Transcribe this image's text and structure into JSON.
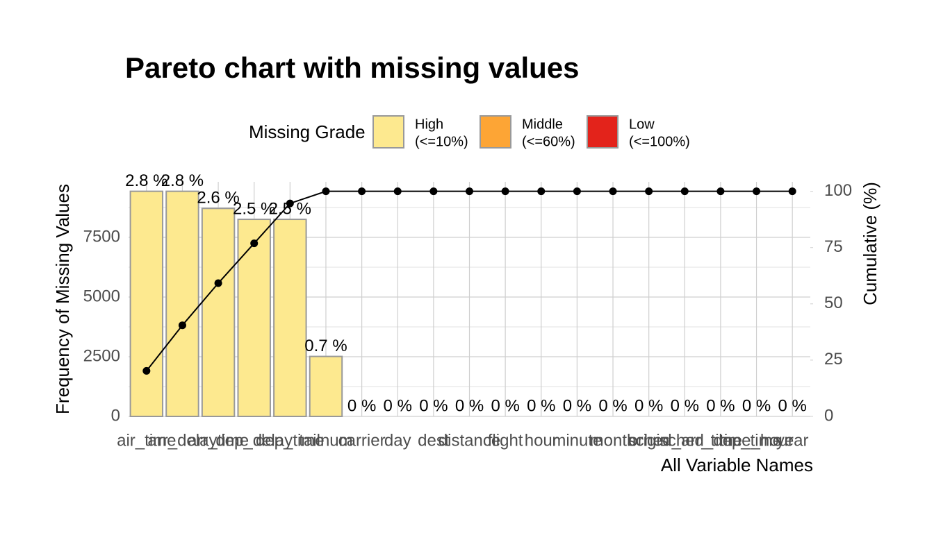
{
  "chart_data": {
    "type": "pareto",
    "title": "Pareto chart with missing values",
    "y_label": "Frequency of Missing Values",
    "y2_label": "Cumulative (%)",
    "x_label": "All Variable Names",
    "legend_title": "Missing Grade",
    "legend": [
      {
        "lines": [
          "High",
          "(<=10%)"
        ],
        "color": "#FDE98F"
      },
      {
        "lines": [
          "Middle",
          "(<=60%)"
        ],
        "color": "#FDA535"
      },
      {
        "lines": [
          "Low",
          "(<=100%)"
        ],
        "color": "#E3231B"
      }
    ],
    "categories": [
      "air_time",
      "arr_delay",
      "arr_time",
      "dep_delay",
      "dep_time",
      "tailnum",
      "carrier",
      "day",
      "dest",
      "distance",
      "flight",
      "hour",
      "minute",
      "month",
      "origin",
      "sched_arr_time",
      "sched_dep_time",
      "time_hour",
      "year"
    ],
    "values": [
      9430,
      9430,
      8713,
      8255,
      8255,
      2512,
      0,
      0,
      0,
      0,
      0,
      0,
      0,
      0,
      0,
      0,
      0,
      0,
      0
    ],
    "percent_labels": [
      "2.8 %",
      "2.8 %",
      "2.6 %",
      "2.5 %",
      "2.5 %",
      "0.7 %",
      "0 %",
      "0 %",
      "0 %",
      "0 %",
      "0 %",
      "0 %",
      "0 %",
      "0 %",
      "0 %",
      "0 %",
      "0 %",
      "0 %",
      "0 %"
    ],
    "color": "#FDE98F",
    "cumulative": {
      "axis": "y2",
      "color": "#000000",
      "values": [
        20.24,
        40.48,
        59.18,
        76.89,
        94.61,
        100,
        100,
        100,
        100,
        100,
        100,
        100,
        100,
        100,
        100,
        100,
        100,
        100,
        100
      ]
    },
    "ylim": [
      0,
      9826
    ],
    "yticks": [
      0,
      2500,
      5000,
      7500
    ],
    "y2lim": [
      0,
      104.2
    ],
    "y2ticks": [
      0,
      25,
      50,
      75,
      100
    ],
    "grid": true
  }
}
